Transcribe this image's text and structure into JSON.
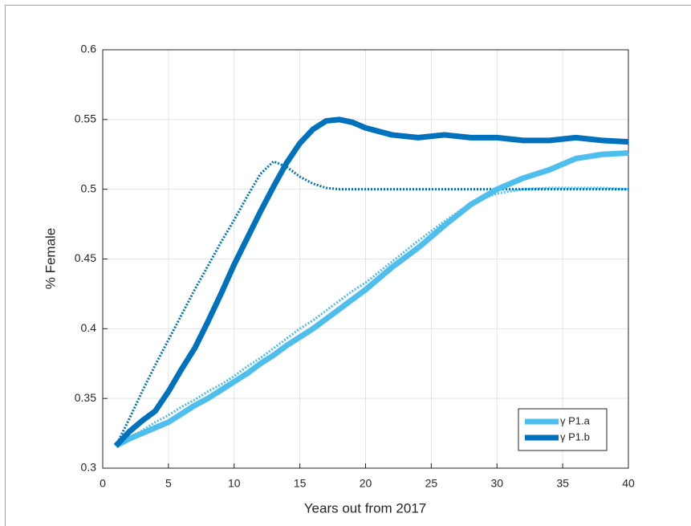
{
  "chart_data": {
    "type": "line",
    "xlabel": "Years out from 2017",
    "ylabel": "% Female",
    "x": [
      1,
      2,
      3,
      4,
      5,
      6,
      7,
      8,
      9,
      10,
      11,
      12,
      13,
      14,
      15,
      16,
      17,
      18,
      19,
      20,
      22,
      24,
      26,
      28,
      30,
      32,
      34,
      36,
      38,
      40
    ],
    "series": [
      {
        "name": "γ P1.a",
        "color": "#4dbeee",
        "style": "solid",
        "values": [
          0.316,
          0.321,
          0.325,
          0.329,
          0.333,
          0.339,
          0.345,
          0.35,
          0.356,
          0.362,
          0.368,
          0.375,
          0.381,
          0.388,
          0.394,
          0.4,
          0.407,
          0.414,
          0.421,
          0.428,
          0.444,
          0.458,
          0.474,
          0.489,
          0.5,
          0.508,
          0.514,
          0.522,
          0.525,
          0.526
        ]
      },
      {
        "name": "γ P1.b",
        "color": "#0072bd",
        "style": "solid",
        "values": [
          0.316,
          0.326,
          0.334,
          0.341,
          0.355,
          0.371,
          0.386,
          0.405,
          0.425,
          0.446,
          0.465,
          0.484,
          0.502,
          0.519,
          0.533,
          0.543,
          0.549,
          0.55,
          0.548,
          0.544,
          0.539,
          0.537,
          0.539,
          0.537,
          0.537,
          0.535,
          0.535,
          0.537,
          0.535,
          0.534
        ]
      },
      {
        "color": "#4dbeee",
        "style": "dotted",
        "values": [
          0.316,
          0.322,
          0.327,
          0.333,
          0.338,
          0.344,
          0.349,
          0.355,
          0.36,
          0.366,
          0.373,
          0.379,
          0.386,
          0.393,
          0.4,
          0.406,
          0.413,
          0.42,
          0.427,
          0.433,
          0.448,
          0.463,
          0.477,
          0.49,
          0.497,
          0.5,
          0.501,
          0.501,
          0.501,
          0.5
        ]
      },
      {
        "color": "#0072bd",
        "style": "dotted",
        "values": [
          0.316,
          0.335,
          0.355,
          0.374,
          0.392,
          0.41,
          0.428,
          0.445,
          0.462,
          0.478,
          0.495,
          0.511,
          0.52,
          0.516,
          0.509,
          0.504,
          0.501,
          0.5,
          0.5,
          0.5,
          0.5,
          0.5,
          0.5,
          0.5,
          0.5,
          0.5,
          0.5,
          0.5,
          0.5,
          0.5
        ]
      }
    ],
    "xlim": [
      0,
      40
    ],
    "xticks": [
      0,
      5,
      10,
      15,
      20,
      25,
      30,
      35,
      40
    ],
    "ylim": [
      0.3,
      0.6
    ],
    "yticks": [
      0.3,
      0.35,
      0.4,
      0.45,
      0.5,
      0.55,
      0.6
    ],
    "grid": true,
    "legend": "southeast"
  }
}
